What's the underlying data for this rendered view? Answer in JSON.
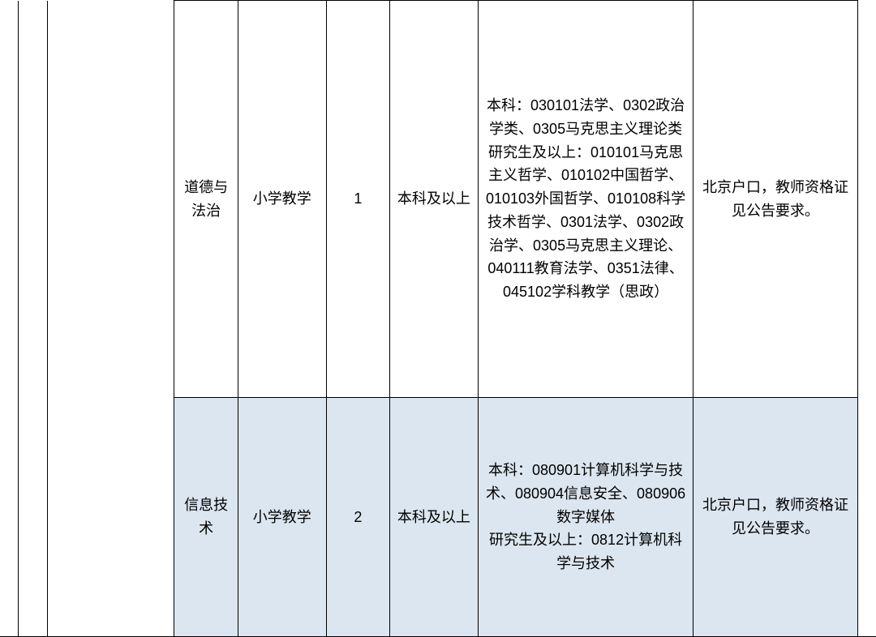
{
  "table": {
    "border_color": "#000000",
    "alt_row_bg": "#dce6f0",
    "background_color": "#ffffff",
    "font_size": 18,
    "rows": [
      {
        "subject": "道德与 法治",
        "level": "小学教学",
        "count": "1",
        "education": "本科及以上",
        "major": "本科：030101法学、0302政治学类、0305马克思主义理论类\n研究生及以上：010101马克思主义哲学、010102中国哲学、010103外国哲学、010108科学技术哲学、0301法学、0302政治学、0305马克思主义理论、040111教育法学、0351法律、045102学科教学（思政）",
        "requirement": "北京户口，教师资格证见公告要求。",
        "alt": false
      },
      {
        "subject": "信息技术",
        "level": "小学教学",
        "count": "2",
        "education": "本科及以上",
        "major": "本科：080901计算机科学与技术、080904信息安全、080906数字媒体\n研究生及以上：0812计算机科学与技术",
        "requirement": "北京户口，教师资格证见公告要求。",
        "alt": true
      }
    ]
  }
}
